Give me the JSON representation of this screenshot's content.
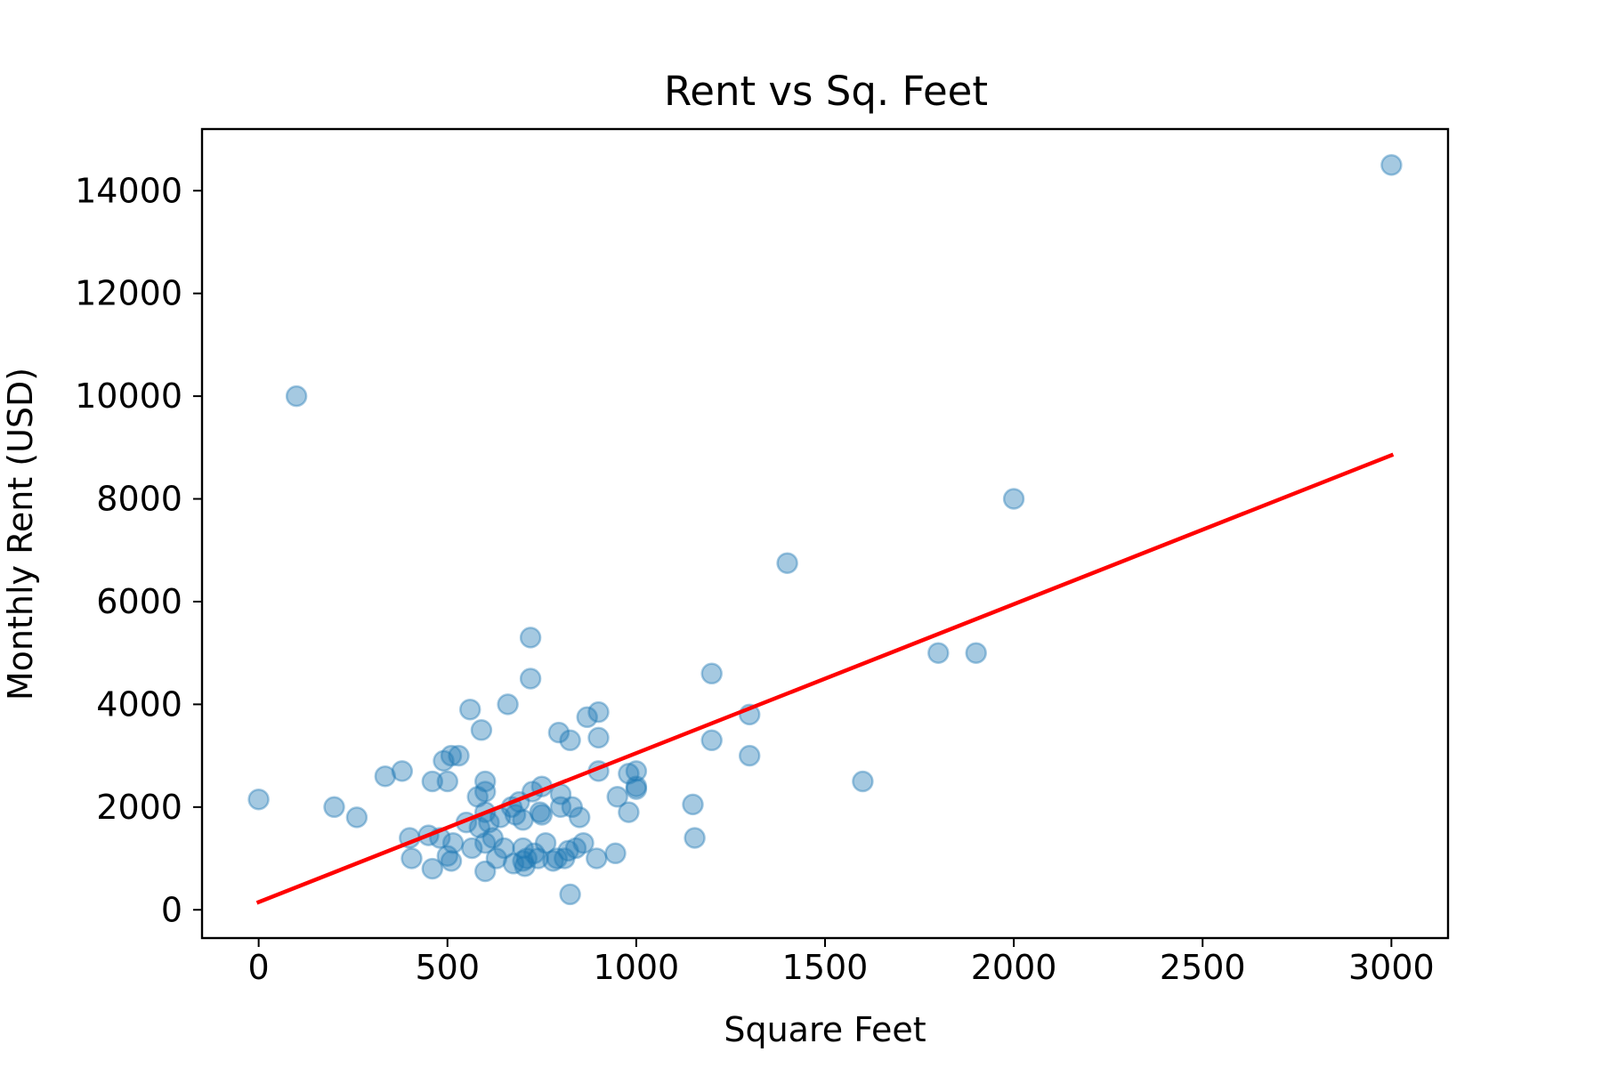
{
  "chart_data": {
    "type": "scatter",
    "title": "Rent vs Sq. Feet",
    "xlabel": "Square Feet",
    "ylabel": "Monthly Rent (USD)",
    "xlim": [
      -150,
      3150
    ],
    "ylim": [
      -550,
      15200
    ],
    "xticks": [
      0,
      500,
      1000,
      1500,
      2000,
      2500,
      3000
    ],
    "yticks": [
      0,
      2000,
      4000,
      6000,
      8000,
      10000,
      12000,
      14000
    ],
    "grid": false,
    "colors": {
      "points": "#1f77b4",
      "trend_line": "#ff0000"
    },
    "series": [
      {
        "points": [
          [
            0,
            2150
          ],
          [
            100,
            10000
          ],
          [
            200,
            2000
          ],
          [
            260,
            1800
          ],
          [
            335,
            2600
          ],
          [
            380,
            2700
          ],
          [
            400,
            1400
          ],
          [
            405,
            1000
          ],
          [
            450,
            1450
          ],
          [
            460,
            2500
          ],
          [
            460,
            800
          ],
          [
            480,
            1400
          ],
          [
            490,
            2900
          ],
          [
            500,
            2500
          ],
          [
            500,
            1050
          ],
          [
            510,
            3000
          ],
          [
            510,
            950
          ],
          [
            515,
            1300
          ],
          [
            530,
            3000
          ],
          [
            550,
            1700
          ],
          [
            560,
            3900
          ],
          [
            565,
            1200
          ],
          [
            580,
            2200
          ],
          [
            585,
            1600
          ],
          [
            590,
            3500
          ],
          [
            600,
            2500
          ],
          [
            600,
            2300
          ],
          [
            600,
            1900
          ],
          [
            600,
            1300
          ],
          [
            600,
            750
          ],
          [
            610,
            1700
          ],
          [
            620,
            1400
          ],
          [
            630,
            1000
          ],
          [
            640,
            1800
          ],
          [
            650,
            1200
          ],
          [
            660,
            4000
          ],
          [
            670,
            2000
          ],
          [
            675,
            900
          ],
          [
            680,
            1850
          ],
          [
            690,
            2100
          ],
          [
            700,
            1750
          ],
          [
            700,
            1200
          ],
          [
            700,
            950
          ],
          [
            705,
            850
          ],
          [
            710,
            1000
          ],
          [
            720,
            5300
          ],
          [
            720,
            4500
          ],
          [
            725,
            2300
          ],
          [
            730,
            1100
          ],
          [
            740,
            1000
          ],
          [
            745,
            1900
          ],
          [
            750,
            2400
          ],
          [
            750,
            1850
          ],
          [
            760,
            1300
          ],
          [
            780,
            950
          ],
          [
            790,
            1000
          ],
          [
            795,
            3450
          ],
          [
            800,
            2250
          ],
          [
            800,
            2000
          ],
          [
            810,
            1000
          ],
          [
            820,
            1150
          ],
          [
            825,
            300
          ],
          [
            825,
            3300
          ],
          [
            830,
            2000
          ],
          [
            840,
            1200
          ],
          [
            850,
            1800
          ],
          [
            860,
            1300
          ],
          [
            870,
            3750
          ],
          [
            895,
            1000
          ],
          [
            900,
            3850
          ],
          [
            900,
            3350
          ],
          [
            900,
            2700
          ],
          [
            945,
            1100
          ],
          [
            950,
            2200
          ],
          [
            980,
            1900
          ],
          [
            980,
            2650
          ],
          [
            1000,
            2700
          ],
          [
            1000,
            2400
          ],
          [
            1000,
            2350
          ],
          [
            1150,
            2050
          ],
          [
            1155,
            1400
          ],
          [
            1200,
            4600
          ],
          [
            1200,
            3300
          ],
          [
            1300,
            3800
          ],
          [
            1300,
            3000
          ],
          [
            1400,
            6750
          ],
          [
            1600,
            2500
          ],
          [
            1800,
            5000
          ],
          [
            1900,
            5000
          ],
          [
            2000,
            8000
          ],
          [
            3000,
            14500
          ]
        ]
      }
    ],
    "trend_line": {
      "x": [
        0,
        3000
      ],
      "y": [
        150,
        8850
      ]
    }
  }
}
